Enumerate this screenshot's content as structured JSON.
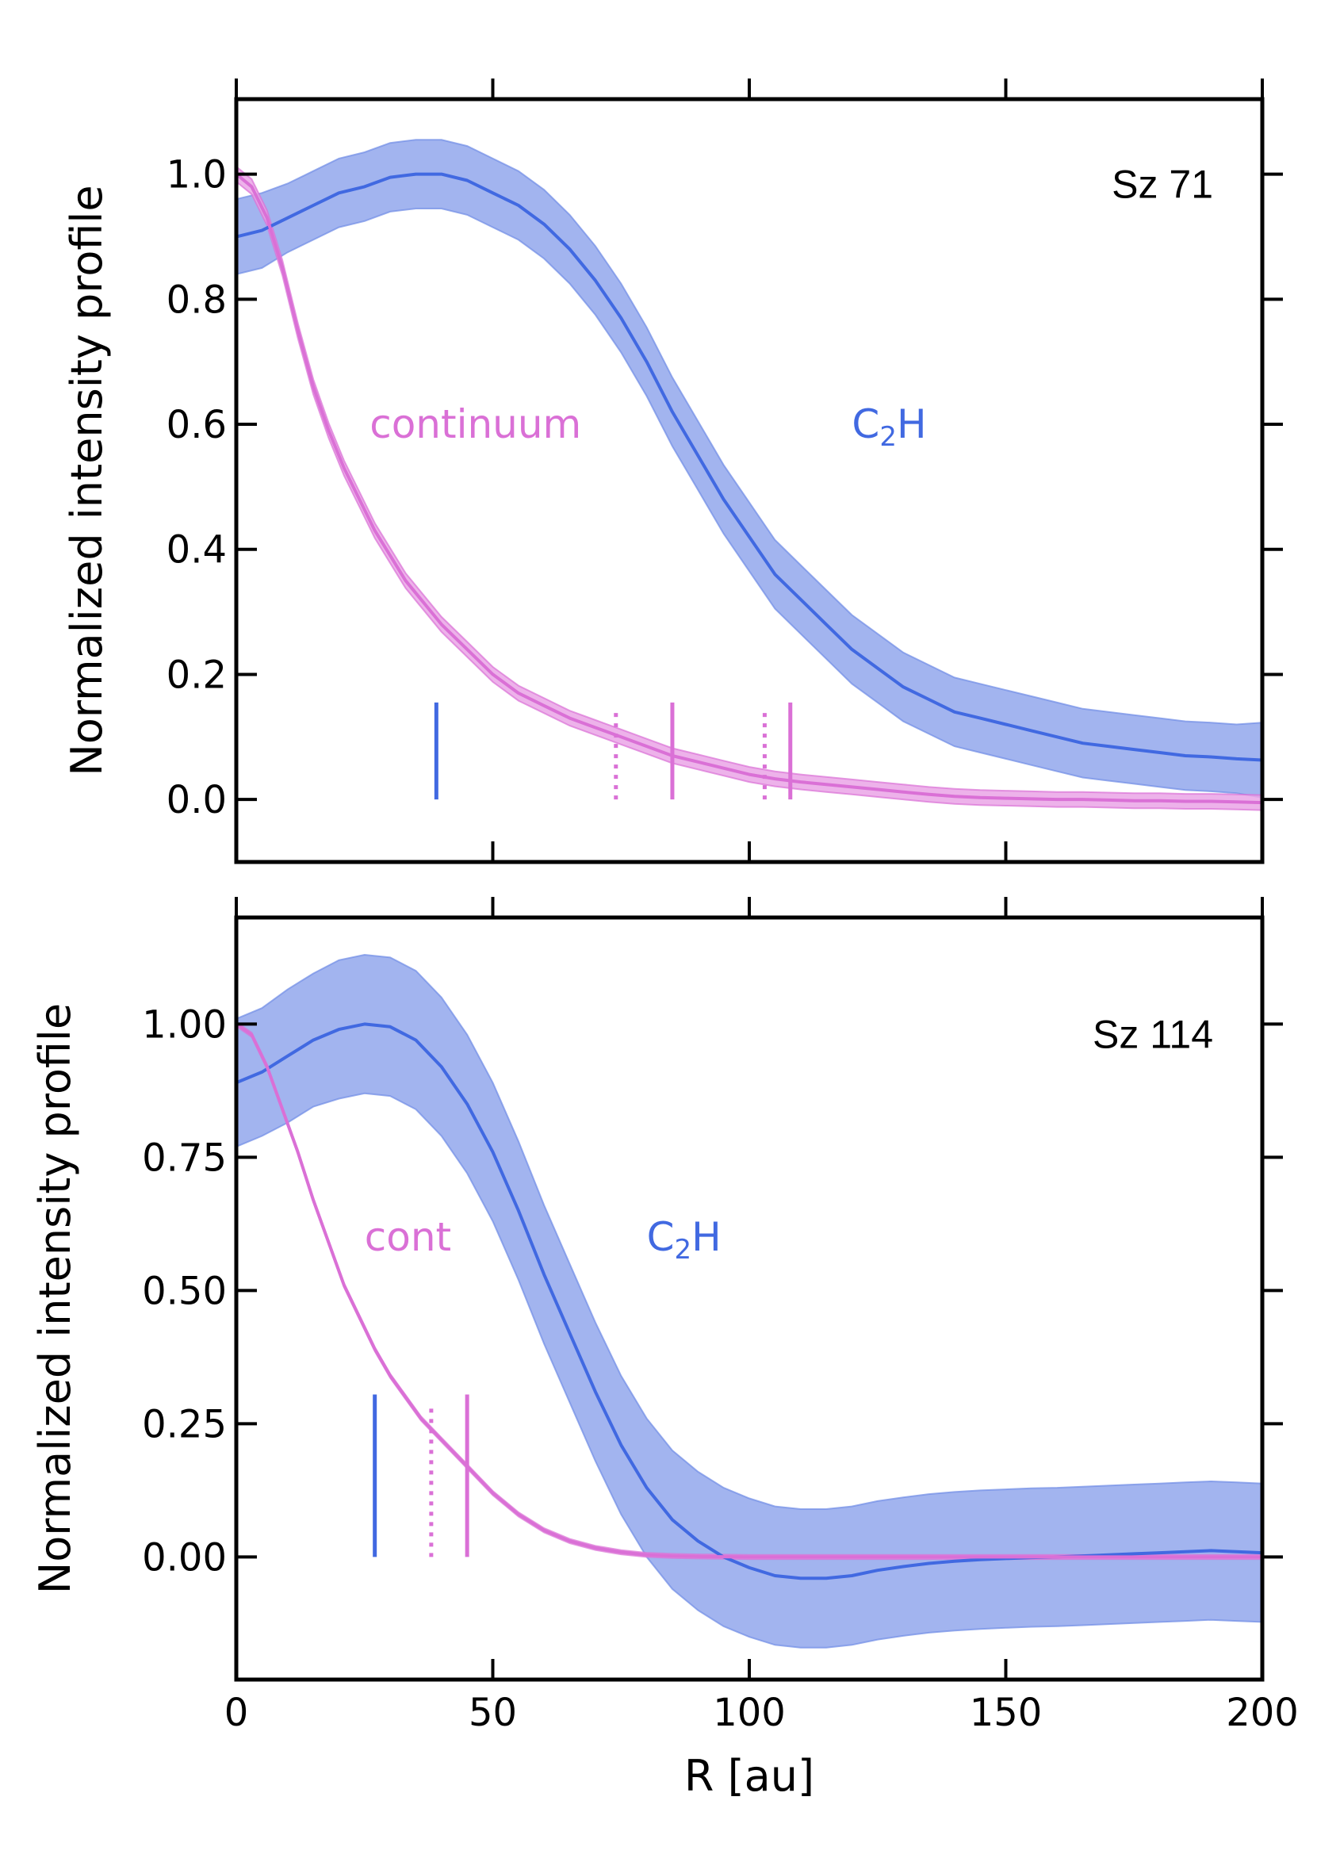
{
  "figure": {
    "xlabel": "R [au]"
  },
  "colors": {
    "c2h_line": "#4169e1",
    "c2h_band": "#9db0ee",
    "c2h_band_edge": "#6f8ce6",
    "cont_line": "#da70d6",
    "cont_band": "#eaa5e6"
  },
  "chart_data": [
    {
      "type": "line",
      "title": "Sz 71",
      "xlabel": "",
      "ylabel": "Normalized intensity profile",
      "xlim": [
        0,
        200
      ],
      "ylim": [
        -0.1,
        1.12
      ],
      "xticks": [
        0,
        50,
        100,
        150,
        200
      ],
      "yticks": [
        0.0,
        0.2,
        0.4,
        0.6,
        0.8,
        1.0
      ],
      "ytick_labels": [
        "0.0",
        "0.2",
        "0.4",
        "0.6",
        "0.8",
        "1.0"
      ],
      "series": [
        {
          "name": "C2H",
          "label_prefix": "C",
          "label_sub": "2",
          "label_suffix": "H",
          "label_at": [
            120,
            0.6
          ],
          "x": [
            0,
            5,
            10,
            15,
            20,
            25,
            30,
            35,
            40,
            45,
            50,
            55,
            60,
            65,
            70,
            75,
            80,
            85,
            90,
            95,
            100,
            105,
            110,
            115,
            120,
            125,
            130,
            135,
            140,
            145,
            150,
            155,
            160,
            165,
            170,
            175,
            180,
            185,
            190,
            195,
            200
          ],
          "y": [
            0.9,
            0.91,
            0.93,
            0.95,
            0.97,
            0.98,
            0.995,
            1.0,
            1.0,
            0.99,
            0.97,
            0.95,
            0.92,
            0.88,
            0.83,
            0.77,
            0.7,
            0.62,
            0.55,
            0.48,
            0.42,
            0.36,
            0.32,
            0.28,
            0.24,
            0.21,
            0.18,
            0.16,
            0.14,
            0.13,
            0.12,
            0.11,
            0.1,
            0.09,
            0.085,
            0.08,
            0.075,
            0.07,
            0.068,
            0.065,
            0.063
          ],
          "err": [
            0.06,
            0.06,
            0.055,
            0.055,
            0.055,
            0.055,
            0.055,
            0.055,
            0.055,
            0.055,
            0.055,
            0.055,
            0.055,
            0.055,
            0.055,
            0.055,
            0.055,
            0.055,
            0.055,
            0.055,
            0.055,
            0.055,
            0.055,
            0.055,
            0.055,
            0.055,
            0.055,
            0.055,
            0.055,
            0.055,
            0.055,
            0.055,
            0.055,
            0.055,
            0.055,
            0.055,
            0.055,
            0.055,
            0.055,
            0.055,
            0.06
          ]
        },
        {
          "name": "continuum",
          "label_at": [
            26,
            0.6
          ],
          "x": [
            0,
            3,
            6,
            9,
            12,
            15,
            18,
            21,
            24,
            27,
            30,
            33,
            36,
            40,
            45,
            50,
            55,
            60,
            65,
            70,
            75,
            80,
            85,
            90,
            95,
            100,
            105,
            110,
            115,
            120,
            125,
            130,
            135,
            140,
            145,
            150,
            155,
            160,
            165,
            170,
            175,
            180,
            185,
            190,
            195,
            200
          ],
          "y": [
            1.0,
            0.98,
            0.93,
            0.85,
            0.75,
            0.66,
            0.59,
            0.53,
            0.48,
            0.43,
            0.39,
            0.35,
            0.32,
            0.28,
            0.24,
            0.2,
            0.17,
            0.15,
            0.13,
            0.115,
            0.1,
            0.085,
            0.07,
            0.06,
            0.05,
            0.04,
            0.033,
            0.028,
            0.024,
            0.02,
            0.016,
            0.012,
            0.008,
            0.005,
            0.003,
            0.002,
            0.001,
            0.0,
            0.0,
            -0.001,
            -0.002,
            -0.002,
            -0.003,
            -0.003,
            -0.004,
            -0.005
          ],
          "err": 0.012
        }
      ],
      "markers": [
        {
          "x": 39,
          "y0": 0.0,
          "y1": 0.155,
          "series": "C2H",
          "style": "solid"
        },
        {
          "x": 74,
          "y0": 0.0,
          "y1": 0.14,
          "series": "continuum",
          "style": "dotted"
        },
        {
          "x": 85,
          "y0": 0.0,
          "y1": 0.155,
          "series": "continuum",
          "style": "solid"
        },
        {
          "x": 103,
          "y0": 0.0,
          "y1": 0.14,
          "series": "continuum",
          "style": "dotted"
        },
        {
          "x": 108,
          "y0": 0.0,
          "y1": 0.155,
          "series": "continuum",
          "style": "solid"
        }
      ]
    },
    {
      "type": "line",
      "title": "Sz 114",
      "xlabel": "R [au]",
      "ylabel": "Normalized intensity profile",
      "xlim": [
        0,
        200
      ],
      "ylim": [
        -0.23,
        1.2
      ],
      "xticks": [
        0,
        50,
        100,
        150,
        200
      ],
      "xtick_labels": [
        "0",
        "50",
        "100",
        "150",
        "200"
      ],
      "yticks": [
        0.0,
        0.25,
        0.5,
        0.75,
        1.0
      ],
      "ytick_labels": [
        "0.00",
        "0.25",
        "0.50",
        "0.75",
        "1.00"
      ],
      "series": [
        {
          "name": "C2H",
          "label_prefix": "C",
          "label_sub": "2",
          "label_suffix": "H",
          "label_at": [
            80,
            0.6
          ],
          "x": [
            0,
            5,
            10,
            15,
            20,
            25,
            30,
            35,
            40,
            45,
            50,
            55,
            60,
            65,
            70,
            75,
            80,
            85,
            90,
            95,
            100,
            105,
            110,
            115,
            120,
            125,
            130,
            135,
            140,
            145,
            150,
            155,
            160,
            165,
            170,
            175,
            180,
            185,
            190,
            195,
            200
          ],
          "y": [
            0.89,
            0.91,
            0.94,
            0.97,
            0.99,
            1.0,
            0.995,
            0.97,
            0.92,
            0.85,
            0.76,
            0.65,
            0.53,
            0.42,
            0.31,
            0.21,
            0.13,
            0.07,
            0.03,
            0.0,
            -0.02,
            -0.035,
            -0.04,
            -0.04,
            -0.035,
            -0.025,
            -0.018,
            -0.012,
            -0.008,
            -0.005,
            -0.003,
            -0.001,
            0.0,
            0.002,
            0.004,
            0.006,
            0.008,
            0.01,
            0.012,
            0.01,
            0.008
          ],
          "err": [
            0.12,
            0.12,
            0.125,
            0.125,
            0.13,
            0.13,
            0.13,
            0.13,
            0.13,
            0.13,
            0.13,
            0.13,
            0.13,
            0.13,
            0.13,
            0.13,
            0.13,
            0.13,
            0.13,
            0.13,
            0.13,
            0.13,
            0.13,
            0.13,
            0.13,
            0.13,
            0.13,
            0.13,
            0.13,
            0.13,
            0.13,
            0.13,
            0.13,
            0.13,
            0.13,
            0.13,
            0.13,
            0.13,
            0.13,
            0.13,
            0.13
          ]
        },
        {
          "name": "cont",
          "label_at": [
            25,
            0.6
          ],
          "x": [
            0,
            3,
            6,
            9,
            12,
            15,
            18,
            21,
            24,
            27,
            30,
            33,
            36,
            40,
            45,
            50,
            55,
            60,
            65,
            70,
            75,
            80,
            85,
            90,
            95,
            100,
            110,
            120,
            130,
            140,
            150,
            160,
            170,
            180,
            190,
            200
          ],
          "y": [
            1.0,
            0.98,
            0.92,
            0.84,
            0.76,
            0.67,
            0.59,
            0.51,
            0.45,
            0.39,
            0.34,
            0.3,
            0.26,
            0.22,
            0.17,
            0.12,
            0.08,
            0.05,
            0.03,
            0.017,
            0.009,
            0.004,
            0.002,
            0.001,
            0.0005,
            0.0,
            0.0,
            0.0,
            0.0,
            0.0,
            0.0,
            0.0,
            0.0,
            0.0,
            0.0,
            0.0
          ],
          "err": 0.004
        }
      ],
      "markers": [
        {
          "x": 27,
          "y0": 0.0,
          "y1": 0.305,
          "series": "C2H",
          "style": "solid"
        },
        {
          "x": 38,
          "y0": 0.0,
          "y1": 0.29,
          "series": "cont",
          "style": "dotted"
        },
        {
          "x": 45,
          "y0": 0.0,
          "y1": 0.305,
          "series": "cont",
          "style": "solid"
        }
      ]
    }
  ]
}
